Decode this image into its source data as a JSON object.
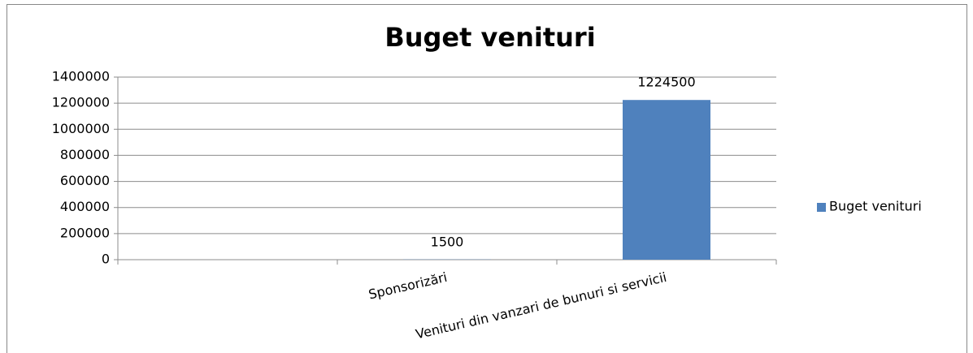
{
  "chart_data": {
    "type": "bar",
    "title": "Buget venituri",
    "categories": [
      null,
      "Sponsorizări",
      "Venituri din vanzari de bunuri si servicii"
    ],
    "series": [
      {
        "name": "Buget venituri",
        "color": "#4f81bd",
        "values": [
          null,
          1500,
          1224500
        ]
      }
    ],
    "ylim": [
      0,
      1400000
    ],
    "yticks": [
      0,
      200000,
      400000,
      600000,
      800000,
      1000000,
      1200000,
      1400000
    ],
    "grid": true,
    "legend": "right",
    "data_labels": true
  }
}
